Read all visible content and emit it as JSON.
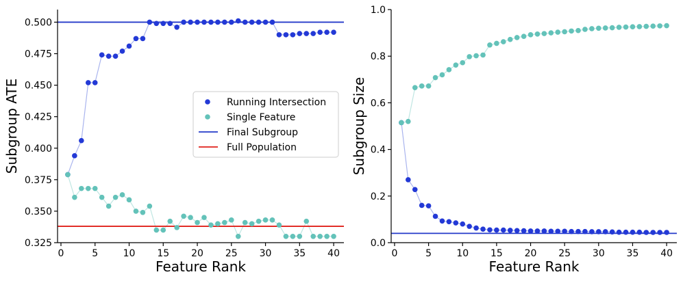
{
  "colors": {
    "running": "#2339d6",
    "single": "#63c2b9",
    "final": "#2339c9",
    "full": "#e0201a",
    "running_line": "#a9b4ee",
    "single_line": "#bfe6e2"
  },
  "chart_data": [
    {
      "type": "scatter",
      "xlabel": "Feature Rank",
      "ylabel": "Subgroup ATE",
      "xlim": [
        -0.5,
        41.5
      ],
      "ylim": [
        0.325,
        0.51
      ],
      "xticks": [
        "0",
        "5",
        "10",
        "15",
        "20",
        "25",
        "30",
        "35",
        "40"
      ],
      "yticks": [
        "0.325",
        "0.350",
        "0.375",
        "0.400",
        "0.425",
        "0.450",
        "0.475",
        "0.500"
      ],
      "x": [
        1,
        2,
        3,
        4,
        5,
        6,
        7,
        8,
        9,
        10,
        11,
        12,
        13,
        14,
        15,
        16,
        17,
        18,
        19,
        20,
        21,
        22,
        23,
        24,
        25,
        26,
        27,
        28,
        29,
        30,
        31,
        32,
        33,
        34,
        35,
        36,
        37,
        38,
        39,
        40
      ],
      "series": [
        {
          "name": "Running Intersection",
          "values": [
            0.379,
            0.394,
            0.406,
            0.452,
            0.452,
            0.474,
            0.473,
            0.473,
            0.477,
            0.481,
            0.487,
            0.487,
            0.5,
            0.499,
            0.499,
            0.499,
            0.496,
            0.5,
            0.5,
            0.5,
            0.5,
            0.5,
            0.5,
            0.5,
            0.5,
            0.501,
            0.5,
            0.5,
            0.5,
            0.5,
            0.5,
            0.49,
            0.49,
            0.49,
            0.491,
            0.491,
            0.491,
            0.492,
            0.492,
            0.492
          ]
        },
        {
          "name": "Single Feature",
          "values": [
            0.379,
            0.361,
            0.368,
            0.368,
            0.368,
            0.361,
            0.354,
            0.361,
            0.363,
            0.359,
            0.35,
            0.349,
            0.354,
            0.335,
            0.335,
            0.342,
            0.337,
            0.346,
            0.345,
            0.341,
            0.345,
            0.339,
            0.34,
            0.341,
            0.343,
            0.33,
            0.341,
            0.34,
            0.342,
            0.343,
            0.343,
            0.339,
            0.33,
            0.33,
            0.33,
            0.342,
            0.33,
            0.33,
            0.33,
            0.33
          ]
        }
      ],
      "hlines": [
        {
          "name": "Final Subgroup",
          "y": 0.5
        },
        {
          "name": "Full Population",
          "y": 0.338
        }
      ],
      "legend": "center-right",
      "grid": false
    },
    {
      "type": "scatter",
      "xlabel": "Feature Rank",
      "ylabel": "Subgroup Size",
      "xlim": [
        -0.5,
        41.5
      ],
      "ylim": [
        0.0,
        1.0
      ],
      "xticks": [
        "0",
        "5",
        "10",
        "15",
        "20",
        "25",
        "30",
        "35",
        "40"
      ],
      "yticks": [
        "0.0",
        "0.2",
        "0.4",
        "0.6",
        "0.8",
        "1.0"
      ],
      "x": [
        1,
        2,
        3,
        4,
        5,
        6,
        7,
        8,
        9,
        10,
        11,
        12,
        13,
        14,
        15,
        16,
        17,
        18,
        19,
        20,
        21,
        22,
        23,
        24,
        25,
        26,
        27,
        28,
        29,
        30,
        31,
        32,
        33,
        34,
        35,
        36,
        37,
        38,
        39,
        40
      ],
      "series": [
        {
          "name": "Running Intersection",
          "values": [
            0.515,
            0.27,
            0.228,
            0.16,
            0.158,
            0.113,
            0.093,
            0.09,
            0.085,
            0.08,
            0.07,
            0.063,
            0.058,
            0.055,
            0.054,
            0.054,
            0.053,
            0.052,
            0.051,
            0.05,
            0.05,
            0.05,
            0.049,
            0.049,
            0.049,
            0.048,
            0.048,
            0.048,
            0.047,
            0.047,
            0.047,
            0.046,
            0.045,
            0.045,
            0.045,
            0.045,
            0.044,
            0.044,
            0.044,
            0.044
          ]
        },
        {
          "name": "Single Feature",
          "values": [
            0.515,
            0.52,
            0.665,
            0.672,
            0.672,
            0.708,
            0.72,
            0.742,
            0.762,
            0.772,
            0.798,
            0.802,
            0.805,
            0.848,
            0.855,
            0.862,
            0.872,
            0.88,
            0.885,
            0.892,
            0.895,
            0.897,
            0.9,
            0.903,
            0.905,
            0.908,
            0.91,
            0.915,
            0.918,
            0.92,
            0.921,
            0.922,
            0.924,
            0.925,
            0.926,
            0.927,
            0.928,
            0.929,
            0.93,
            0.931
          ]
        }
      ],
      "hlines": [
        {
          "name": "Final Subgroup",
          "y": 0.04
        }
      ],
      "grid": false
    }
  ]
}
